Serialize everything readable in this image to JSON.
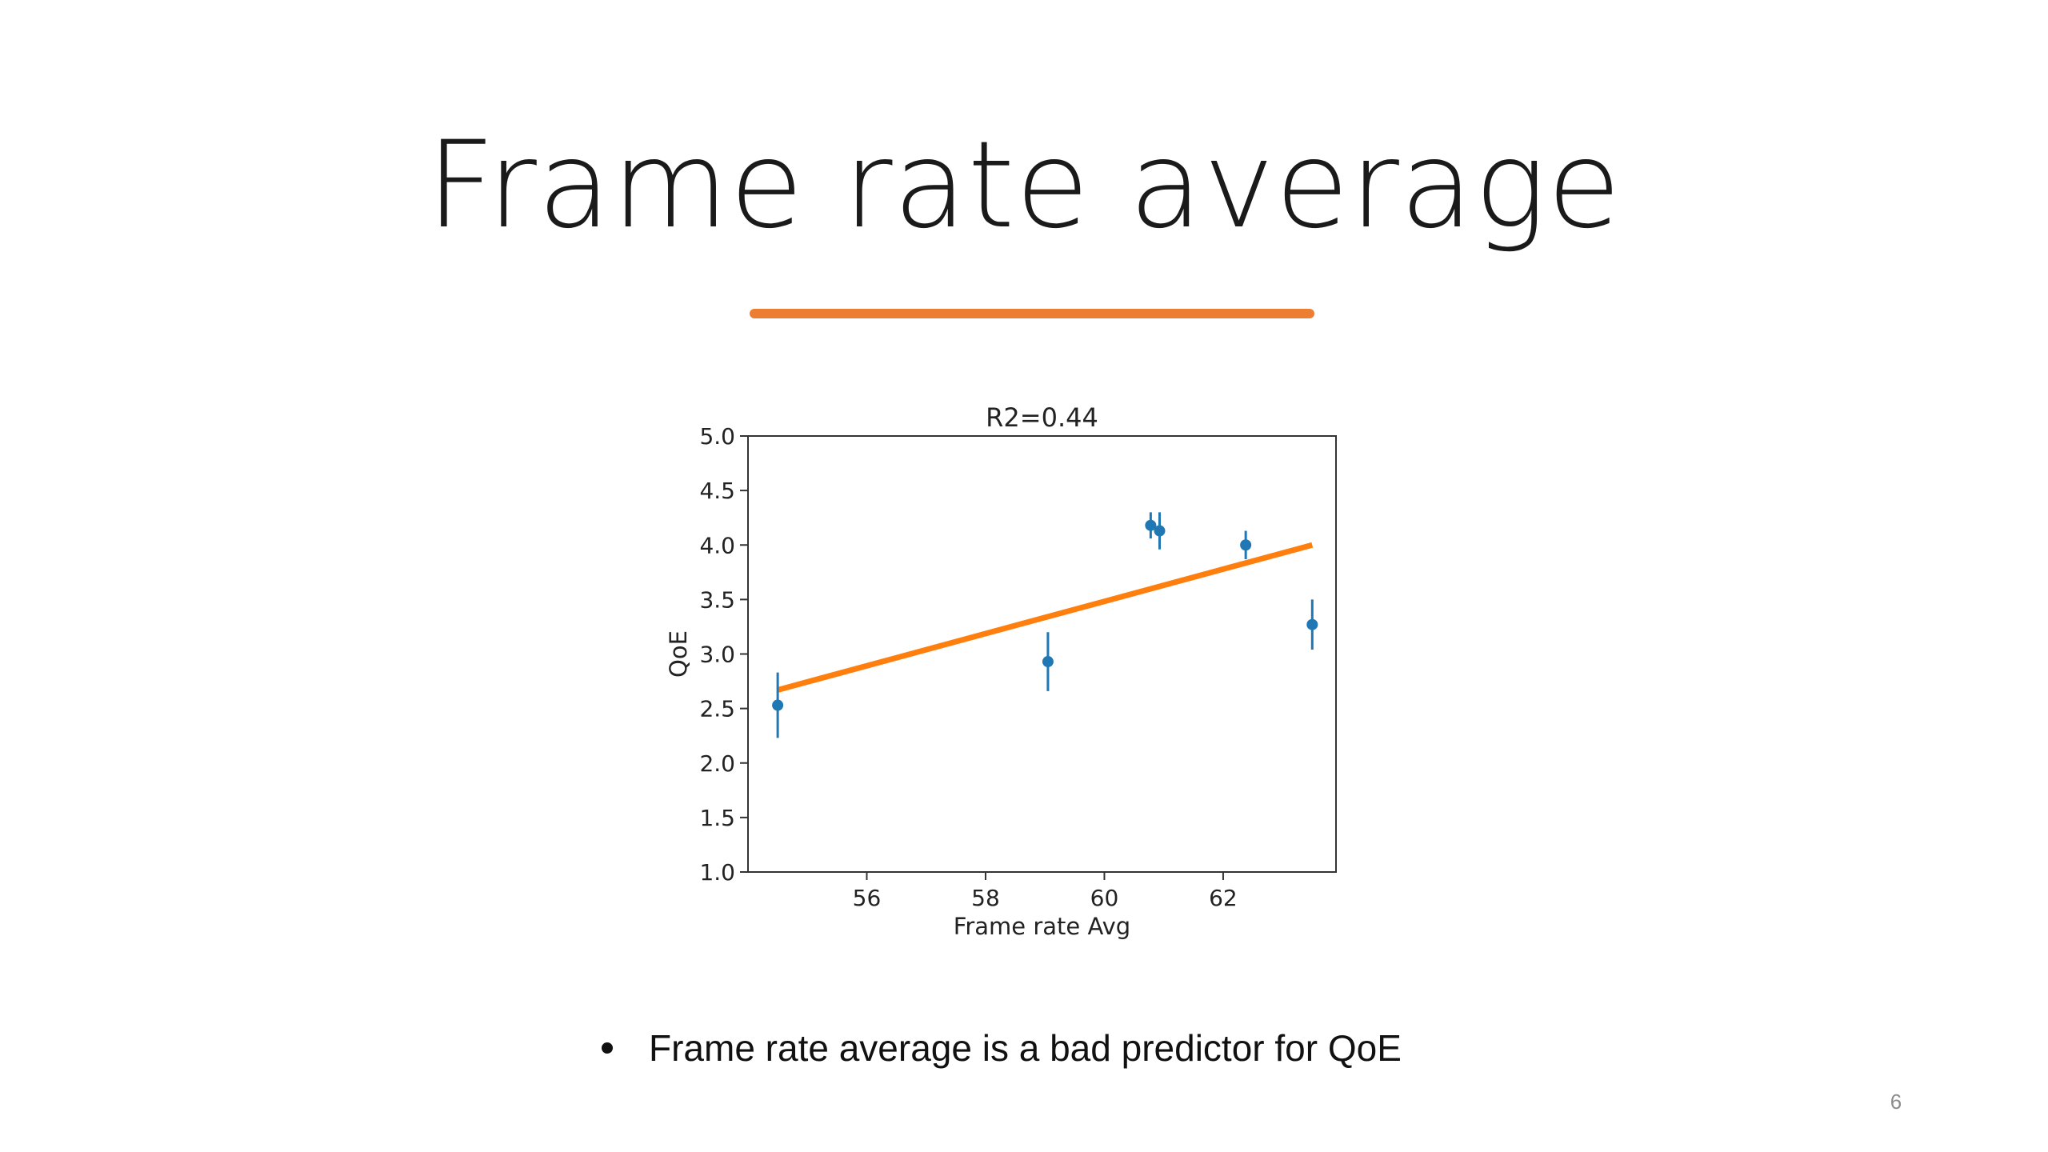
{
  "slide": {
    "title": "Frame rate average",
    "accent_color": "#ED7D31",
    "bullet": "Frame rate average is a bad predictor for QoE",
    "page_number": "6"
  },
  "chart_data": {
    "type": "scatter",
    "title": "R2=0.44",
    "xlabel": "Frame rate Avg",
    "ylabel": "QoE",
    "xlim": [
      54.0,
      63.9
    ],
    "ylim": [
      1.0,
      5.0
    ],
    "xticks": [
      "56",
      "58",
      "60",
      "62"
    ],
    "xtick_values": [
      56,
      58,
      60,
      62
    ],
    "yticks": [
      "1.0",
      "1.5",
      "2.0",
      "2.5",
      "3.0",
      "3.5",
      "4.0",
      "4.5",
      "5.0"
    ],
    "ytick_values": [
      1.0,
      1.5,
      2.0,
      2.5,
      3.0,
      3.5,
      4.0,
      4.5,
      5.0
    ],
    "grid": false,
    "series": [
      {
        "color": "#1f77b4",
        "points": [
          {
            "x": 54.5,
            "y": 2.53,
            "err": 0.3
          },
          {
            "x": 59.05,
            "y": 2.93,
            "err": 0.27
          },
          {
            "x": 60.78,
            "y": 4.18,
            "err": 0.12
          },
          {
            "x": 60.93,
            "y": 4.13,
            "err": 0.17
          },
          {
            "x": 62.38,
            "y": 4.0,
            "err": 0.13
          },
          {
            "x": 63.5,
            "y": 3.27,
            "err": 0.23
          }
        ]
      }
    ],
    "fit_line": {
      "color": "#ff7f0e",
      "x": [
        54.5,
        63.5
      ],
      "y": [
        2.67,
        4.0
      ]
    }
  }
}
